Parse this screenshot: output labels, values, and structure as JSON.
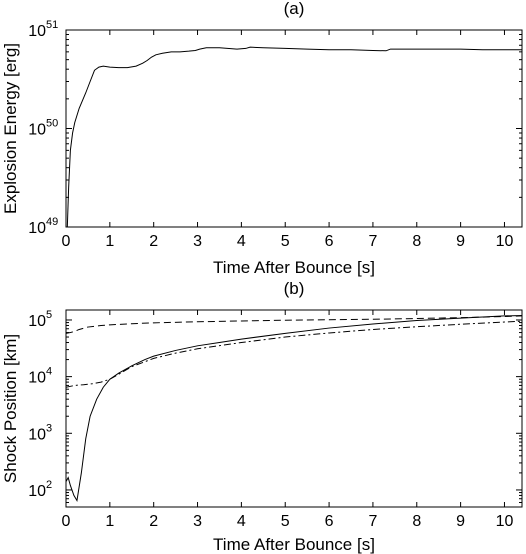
{
  "chart_data": [
    {
      "type": "line",
      "title": "(a)",
      "xlabel": "Time After Bounce [s]",
      "ylabel": "Explosion Energy [erg]",
      "xlim": [
        0,
        10.4
      ],
      "ylim": [
        1e+49,
        1e+51
      ],
      "yscale": "log",
      "xticks": [
        "0",
        "1",
        "2",
        "3",
        "4",
        "5",
        "6",
        "7",
        "8",
        "9",
        "10"
      ],
      "yticks": [
        {
          "base": "10",
          "exp": "49"
        },
        {
          "base": "10",
          "exp": "50"
        },
        {
          "base": "10",
          "exp": "51"
        }
      ],
      "series": [
        {
          "style": "solid",
          "x": [
            0.03,
            0.06,
            0.1,
            0.15,
            0.2,
            0.3,
            0.45,
            0.55,
            0.65,
            0.75,
            0.85,
            1.0,
            1.2,
            1.4,
            1.6,
            1.75,
            1.85,
            1.95,
            2.05,
            2.2,
            2.4,
            2.6,
            2.8,
            2.95,
            3.05,
            3.2,
            3.5,
            3.9,
            4.1,
            4.2,
            4.5,
            5.0,
            5.5,
            6.0,
            6.5,
            7.0,
            7.3,
            7.4,
            7.6,
            8.0,
            8.5,
            9.0,
            9.5,
            10.0,
            10.4
          ],
          "y": [
            1e+49,
            2.5e+49,
            6e+49,
            9e+49,
            1.15e+50,
            1.6e+50,
            2.3e+50,
            3e+50,
            3.9e+50,
            4.2e+50,
            4.3e+50,
            4.2e+50,
            4.15e+50,
            4.15e+50,
            4.3e+50,
            4.6e+50,
            4.9e+50,
            5.3e+50,
            5.6e+50,
            5.8e+50,
            6e+50,
            6e+50,
            6.1e+50,
            6.2e+50,
            6.4e+50,
            6.6e+50,
            6.6e+50,
            6.4e+50,
            6.5e+50,
            6.7e+50,
            6.6e+50,
            6.5e+50,
            6.4e+50,
            6.3e+50,
            6.3e+50,
            6.2e+50,
            6.15e+50,
            6.4e+50,
            6.4e+50,
            6.4e+50,
            6.4e+50,
            6.4e+50,
            6.3e+50,
            6.3e+50,
            6.3e+50
          ]
        }
      ]
    },
    {
      "type": "line",
      "title": "(b)",
      "xlabel": "Time After Bounce [s]",
      "ylabel": "Shock Position [km]",
      "xlim": [
        0,
        10.4
      ],
      "ylim": [
        50,
        150000
      ],
      "yscale": "log",
      "xticks": [
        "0",
        "1",
        "2",
        "3",
        "4",
        "5",
        "6",
        "7",
        "8",
        "9",
        "10"
      ],
      "yticks": [
        {
          "base": "10",
          "exp": "2"
        },
        {
          "base": "10",
          "exp": "3"
        },
        {
          "base": "10",
          "exp": "4"
        },
        {
          "base": "10",
          "exp": "5"
        }
      ],
      "series": [
        {
          "style": "solid",
          "x": [
            0.0,
            0.05,
            0.1,
            0.18,
            0.25,
            0.35,
            0.45,
            0.55,
            0.7,
            0.85,
            1.0,
            1.2,
            1.5,
            1.8,
            2.0,
            2.5,
            3.0,
            3.5,
            4.0,
            5.0,
            6.0,
            7.0,
            8.0,
            9.0,
            10.0,
            10.4
          ],
          "y": [
            140,
            165,
            120,
            80,
            65,
            200,
            800,
            2000,
            4000,
            6500,
            9000,
            11500,
            15500,
            20000,
            23000,
            29000,
            35000,
            40000,
            46000,
            58000,
            72000,
            85000,
            98000,
            108000,
            118000,
            120000
          ]
        },
        {
          "style": "dashed",
          "x": [
            0.0,
            0.1,
            0.2,
            0.3,
            0.5,
            0.8,
            1.0,
            1.5,
            2.0,
            3.0,
            4.0,
            5.0,
            6.0,
            7.0,
            8.0,
            9.0,
            10.0,
            10.4
          ],
          "y": [
            58000,
            60000,
            63000,
            68000,
            75000,
            80000,
            82000,
            86000,
            89000,
            93000,
            96000,
            99000,
            101000,
            103000,
            106000,
            110000,
            115000,
            118000
          ]
        },
        {
          "style": "dashdot",
          "x": [
            0.0,
            0.2,
            0.4,
            0.6,
            0.8,
            1.0,
            1.2,
            1.5,
            2.0,
            2.5,
            3.0,
            4.0,
            5.0,
            6.0,
            7.0,
            8.0,
            9.0,
            10.0,
            10.4
          ],
          "y": [
            6500,
            7000,
            7200,
            7500,
            8000,
            9000,
            11000,
            15000,
            21000,
            26000,
            31000,
            40000,
            50000,
            59000,
            68000,
            76000,
            84000,
            92000,
            95000
          ]
        }
      ]
    }
  ]
}
